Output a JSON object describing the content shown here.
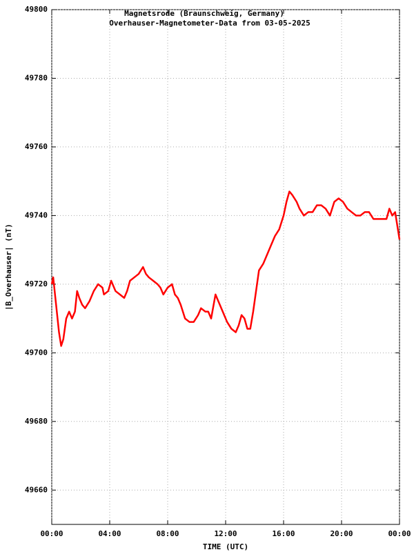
{
  "chart_data": {
    "type": "line",
    "title": "Magnetsrode (Braunschweig, Germany)",
    "subtitle": "Overhauser-Magnetometer-Data from 03-05-2025",
    "x_label": "TIME (UTC)",
    "y_label": "|B_Overhauser| (nT)",
    "xlim": [
      0,
      24
    ],
    "xticks": [
      {
        "value": 0,
        "label": "00:00"
      },
      {
        "value": 4,
        "label": "04:00"
      },
      {
        "value": 8,
        "label": "08:00"
      },
      {
        "value": 12,
        "label": "12:00"
      },
      {
        "value": 16,
        "label": "16:00"
      },
      {
        "value": 20,
        "label": "20:00"
      },
      {
        "value": 24,
        "label": "00:00"
      }
    ],
    "ylim": [
      49650,
      49800
    ],
    "yticks": [
      49660,
      49680,
      49700,
      49720,
      49740,
      49760,
      49780,
      49800
    ],
    "grid": true,
    "x": [
      0.0,
      0.1,
      0.3,
      0.5,
      0.65,
      0.8,
      1.0,
      1.2,
      1.4,
      1.6,
      1.75,
      1.9,
      2.1,
      2.3,
      2.6,
      2.9,
      3.2,
      3.5,
      3.6,
      3.9,
      4.1,
      4.4,
      4.7,
      5.0,
      5.2,
      5.4,
      5.7,
      6.0,
      6.3,
      6.5,
      6.7,
      7.0,
      7.3,
      7.5,
      7.7,
      8.0,
      8.3,
      8.5,
      8.7,
      8.9,
      9.2,
      9.5,
      9.8,
      10.1,
      10.3,
      10.6,
      10.8,
      11.0,
      11.3,
      11.5,
      11.8,
      12.1,
      12.4,
      12.7,
      12.9,
      13.1,
      13.3,
      13.5,
      13.7,
      13.9,
      14.1,
      14.3,
      14.6,
      14.9,
      15.1,
      15.4,
      15.7,
      16.0,
      16.2,
      16.4,
      16.6,
      16.9,
      17.1,
      17.4,
      17.7,
      18.0,
      18.3,
      18.6,
      18.9,
      19.2,
      19.5,
      19.8,
      20.1,
      20.4,
      20.7,
      21.0,
      21.3,
      21.6,
      21.9,
      22.2,
      22.5,
      22.8,
      23.1,
      23.3,
      23.5,
      23.7,
      24.0
    ],
    "series": [
      {
        "color": "#ff0000",
        "values": [
          49720,
          49722,
          49714,
          49706,
          49702,
          49704,
          49710,
          49712,
          49710,
          49712,
          49718,
          49716,
          49714,
          49713,
          49715,
          49718,
          49720,
          49719,
          49717,
          49718,
          49721,
          49718,
          49717,
          49716,
          49718,
          49721,
          49722,
          49723,
          49725,
          49723,
          49722,
          49721,
          49720,
          49719,
          49717,
          49719,
          49720,
          49717,
          49716,
          49714,
          49710,
          49709,
          49709,
          49711,
          49713,
          49712,
          49712,
          49710,
          49717,
          49715,
          49712,
          49709,
          49707,
          49706,
          49708,
          49711,
          49710,
          49707,
          49707,
          49712,
          49718,
          49724,
          49726,
          49729,
          49731,
          49734,
          49736,
          49740,
          49744,
          49747,
          49746,
          49744,
          49742,
          49740,
          49741,
          49741,
          49743,
          49743,
          49742,
          49740,
          49744,
          49745,
          49744,
          49742,
          49741,
          49740,
          49740,
          49741,
          49741,
          49739,
          49739,
          49739,
          49739,
          49742,
          49740,
          49741,
          49733
        ]
      }
    ]
  }
}
